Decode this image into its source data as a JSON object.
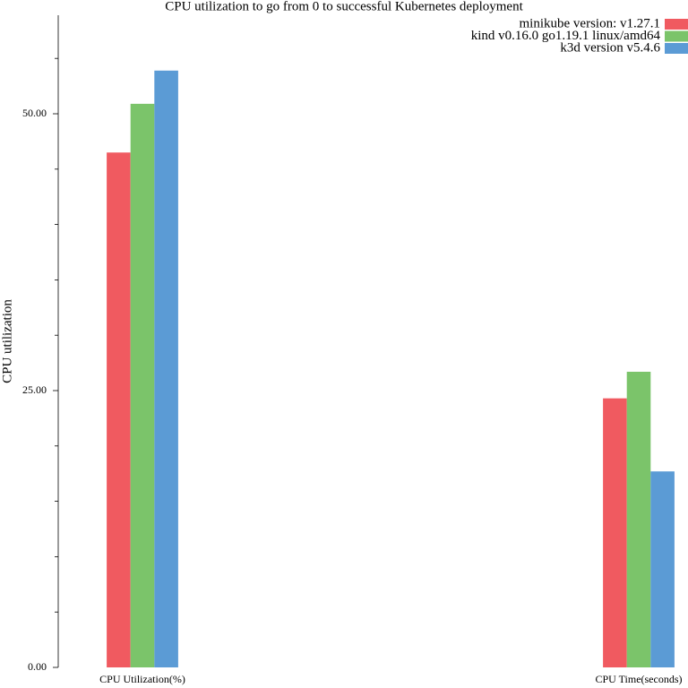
{
  "chart_data": {
    "type": "bar",
    "title": "CPU utilization to go from 0 to successful Kubernetes deployment",
    "y_label": "CPU utilization",
    "categories": [
      "CPU Utilization(%)",
      "CPU Time(seconds)"
    ],
    "series": [
      {
        "name": "minikube version: v1.27.1",
        "color": "#f05a60",
        "values": [
          46.5,
          24.3
        ]
      },
      {
        "name": "kind v0.16.0 go1.19.1 linux/amd64",
        "color": "#7bc46a",
        "values": [
          50.9,
          26.7
        ]
      },
      {
        "name": "k3d version v5.4.6",
        "color": "#5b9bd5",
        "values": [
          53.9,
          17.7
        ]
      }
    ],
    "ylim": [
      0,
      58.9
    ],
    "yticks": [
      {
        "value": 0,
        "label": "0.00"
      },
      {
        "value": 25,
        "label": "25.00"
      },
      {
        "value": 50,
        "label": "50.00"
      }
    ],
    "minor_yticks": [
      5,
      10,
      15,
      20,
      30,
      35,
      40,
      45,
      55
    ],
    "legend": "top-right"
  }
}
